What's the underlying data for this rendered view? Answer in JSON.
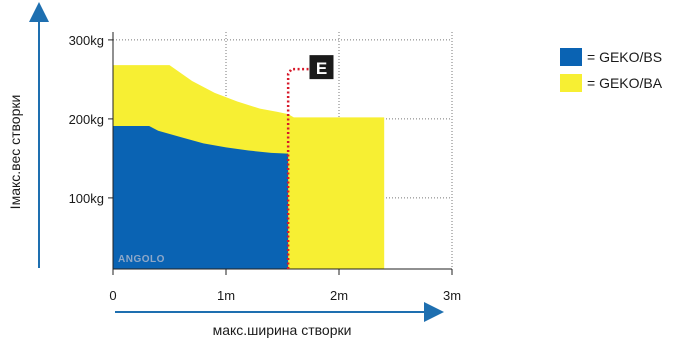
{
  "chart_data": {
    "type": "area",
    "xlabel": "макс.ширина створки",
    "ylabel": "Імакс.вес створки",
    "xlim": [
      0,
      3
    ],
    "ylim": [
      10,
      310
    ],
    "x_ticks": [
      {
        "value": 0,
        "label": "0"
      },
      {
        "value": 1,
        "label": "1m"
      },
      {
        "value": 2,
        "label": "2m"
      },
      {
        "value": 3,
        "label": "3m"
      }
    ],
    "y_ticks": [
      {
        "value": 100,
        "label": "100kg"
      },
      {
        "value": 200,
        "label": "200kg"
      },
      {
        "value": 300,
        "label": "300kg"
      }
    ],
    "grid": true,
    "legend_position": "top-right",
    "series": [
      {
        "name": "= GEKO/BA",
        "color": "#f7ef33",
        "x": [
          0,
          0.5,
          0.7,
          0.9,
          1.1,
          1.3,
          1.45,
          1.55,
          1.6,
          2.4,
          2.4
        ],
        "y": [
          268,
          268,
          248,
          233,
          222,
          213,
          209,
          206,
          202,
          202,
          10
        ]
      },
      {
        "name": "= GEKO/BS",
        "color": "#0a63b3",
        "x": [
          0,
          0.32,
          0.4,
          0.6,
          0.8,
          1.0,
          1.2,
          1.4,
          1.55,
          1.55
        ],
        "y": [
          191,
          191,
          185,
          177,
          169,
          164,
          160,
          157,
          156,
          10
        ]
      }
    ],
    "annotations": [
      {
        "label": "E",
        "line_color": "#d7192a",
        "badge_color": "#1a1a1a",
        "path_x": [
          1.55,
          1.55,
          1.58,
          1.73
        ],
        "path_y": [
          10,
          257,
          263,
          263
        ],
        "badge_anchor_x": 1.73,
        "badge_anchor_y": 263
      }
    ],
    "watermark": "ANGOLO"
  }
}
